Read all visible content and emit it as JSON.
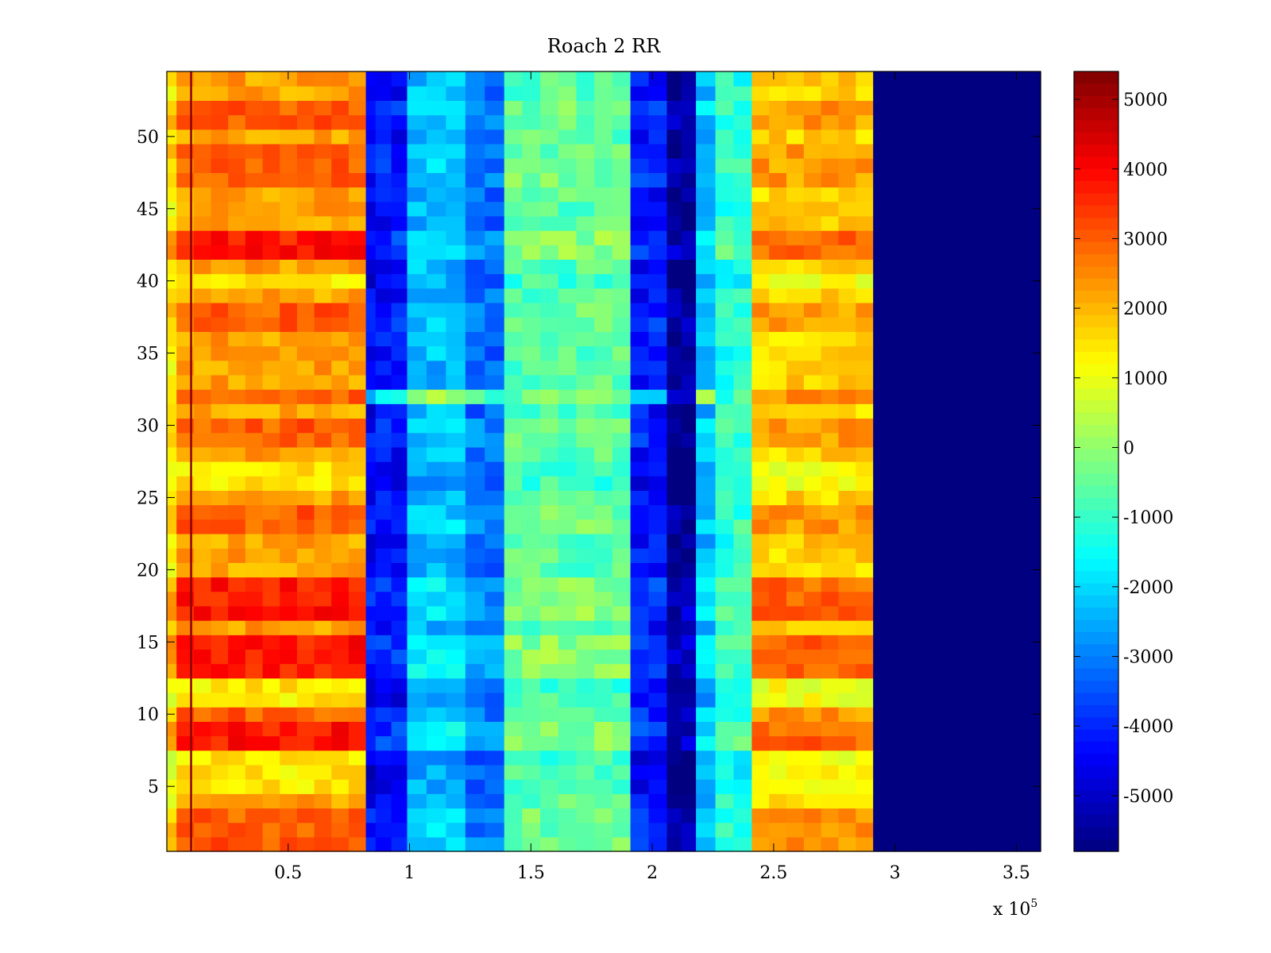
{
  "chart_data": {
    "type": "heatmap",
    "title": "Roach 2 RR",
    "xlabel": "",
    "ylabel": "",
    "x_multiplier_label": "x 10",
    "x_multiplier_exponent": "5",
    "xlim": [
      0,
      3.6
    ],
    "ylim": [
      0.5,
      54.5
    ],
    "xticks": [
      0.5,
      1,
      1.5,
      2,
      2.5,
      3,
      3.5
    ],
    "xtick_labels": [
      "0.5",
      "1",
      "1.5",
      "2",
      "2.5",
      "3",
      "3.5"
    ],
    "yticks": [
      5,
      10,
      15,
      20,
      25,
      30,
      35,
      40,
      45,
      50
    ],
    "ytick_labels": [
      "5",
      "10",
      "15",
      "20",
      "25",
      "30",
      "35",
      "40",
      "45",
      "50"
    ],
    "colormap": "jet",
    "clim": [
      -5800,
      5400
    ],
    "colorbar_ticks": [
      5000,
      4000,
      3000,
      2000,
      1000,
      0,
      -1000,
      -2000,
      -3000,
      -4000,
      -5000
    ],
    "colorbar_tick_labels": [
      "5000",
      "4000",
      "3000",
      "2000",
      "1000",
      "0",
      "-1000",
      "-2000",
      "-3000",
      "-4000",
      "-5000"
    ],
    "rows": 54,
    "column_bands": [
      {
        "x_start": 0.0,
        "x_end": 0.04,
        "mean": 1500
      },
      {
        "x_start": 0.04,
        "x_end": 0.82,
        "mean": 2600
      },
      {
        "x_start": 0.82,
        "x_end": 0.86,
        "mean": -4500
      },
      {
        "x_start": 0.86,
        "x_end": 0.99,
        "mean": -4300
      },
      {
        "x_start": 0.99,
        "x_end": 1.23,
        "mean": -2300
      },
      {
        "x_start": 1.23,
        "x_end": 1.39,
        "mean": -3200
      },
      {
        "x_start": 1.39,
        "x_end": 1.91,
        "mean": -600
      },
      {
        "x_start": 1.91,
        "x_end": 2.06,
        "mean": -4200
      },
      {
        "x_start": 2.06,
        "x_end": 2.18,
        "mean": -5600
      },
      {
        "x_start": 2.18,
        "x_end": 2.26,
        "mean": -2300
      },
      {
        "x_start": 2.26,
        "x_end": 2.41,
        "mean": -1200
      },
      {
        "x_start": 2.41,
        "x_end": 2.91,
        "mean": 2000
      },
      {
        "x_start": 2.91,
        "x_end": 3.6,
        "mean": -5800
      }
    ],
    "row_emphasis": {
      "strong_rows": [
        8,
        9,
        13,
        14,
        15,
        17,
        18,
        19,
        42,
        43
      ],
      "medium_rows": [
        1,
        2,
        3,
        10,
        23,
        24,
        29,
        30,
        32,
        37,
        38,
        47,
        48,
        49,
        51,
        52
      ],
      "weak_rows": [
        5,
        6,
        7,
        11,
        12,
        26,
        27,
        40
      ]
    }
  }
}
